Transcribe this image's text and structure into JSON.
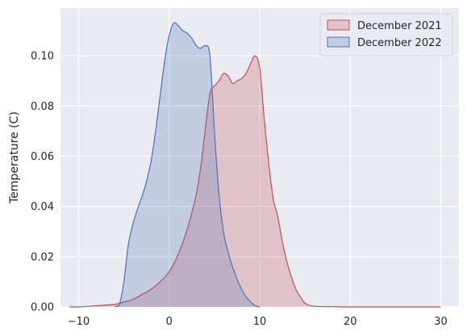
{
  "chart_data": {
    "type": "area",
    "title": "",
    "xlabel": "",
    "ylabel": "Temperature (C)",
    "xlim": [
      -12,
      32
    ],
    "ylim": [
      0,
      0.119
    ],
    "xticks": [
      -10,
      0,
      10,
      20,
      30
    ],
    "xtick_labels": [
      "−10",
      "0",
      "10",
      "20",
      "30"
    ],
    "yticks": [
      0,
      0.02,
      0.04,
      0.06,
      0.08,
      0.1
    ],
    "ytick_labels": [
      "0.00",
      "0.02",
      "0.04",
      "0.06",
      "0.08",
      "0.10"
    ],
    "grid": true,
    "legend_position": "top-right",
    "series": [
      {
        "name": "December 2021",
        "color": "#c44e52",
        "x": [
          -11,
          -10,
          -8,
          -6,
          -5,
          -4,
          -3,
          -2,
          -1,
          0,
          1,
          2,
          3,
          3.5,
          4,
          4.5,
          5,
          5.5,
          6,
          6.5,
          7,
          7.5,
          8,
          8.5,
          9,
          9.5,
          10,
          10.5,
          11,
          11.5,
          12,
          12.5,
          13,
          13.5,
          14,
          14.5,
          15,
          16,
          18,
          20,
          25,
          30
        ],
        "y": [
          0,
          0,
          0.0005,
          0.001,
          0.002,
          0.003,
          0.005,
          0.007,
          0.01,
          0.014,
          0.021,
          0.031,
          0.045,
          0.056,
          0.071,
          0.085,
          0.088,
          0.09,
          0.093,
          0.092,
          0.089,
          0.09,
          0.091,
          0.093,
          0.097,
          0.1,
          0.095,
          0.075,
          0.057,
          0.043,
          0.036,
          0.026,
          0.018,
          0.012,
          0.007,
          0.004,
          0.0015,
          0.0003,
          0.0001,
          0,
          0,
          0
        ]
      },
      {
        "name": "December 2022",
        "color": "#4c72b0",
        "x": [
          -6,
          -5.5,
          -5,
          -4.5,
          -4,
          -3.5,
          -3,
          -2.5,
          -2,
          -1.5,
          -1,
          -0.5,
          0,
          0.5,
          1,
          1.5,
          2,
          2.5,
          3,
          3.5,
          4,
          4.5,
          5,
          5.5,
          6,
          6.5,
          7,
          7.5,
          8,
          8.5,
          9,
          9.5,
          10
        ],
        "y": [
          0,
          0.001,
          0.01,
          0.025,
          0.033,
          0.039,
          0.044,
          0.05,
          0.058,
          0.07,
          0.084,
          0.098,
          0.108,
          0.113,
          0.112,
          0.11,
          0.109,
          0.107,
          0.104,
          0.103,
          0.104,
          0.1,
          0.07,
          0.045,
          0.03,
          0.022,
          0.016,
          0.011,
          0.007,
          0.004,
          0.002,
          0.0005,
          0
        ]
      }
    ]
  }
}
